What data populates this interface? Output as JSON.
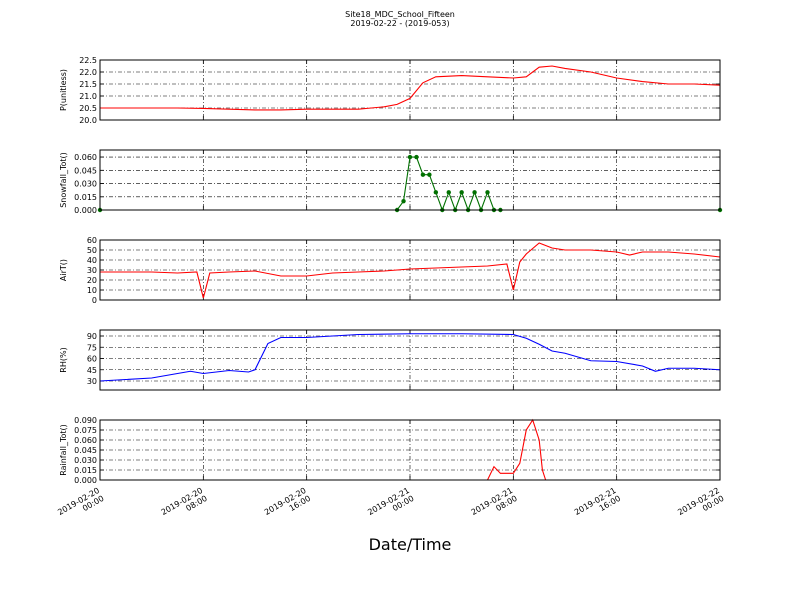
{
  "figure": {
    "title": "Site18_MDC_School_Fifteen",
    "subtitle": "2019-02-22 - (2019-053)",
    "xlabel": "Date/Time"
  },
  "chart_data": [
    {
      "type": "line",
      "ylabel": "P(unitless)",
      "grid": true,
      "xlim": [
        "2019-02-20 00:00",
        "2019-02-22 00:00"
      ],
      "xticks": [
        "2019-02-20 00:00",
        "2019-02-20 08:00",
        "2019-02-20 16:00",
        "2019-02-21 00:00",
        "2019-02-21 08:00",
        "2019-02-21 16:00",
        "2019-02-22 00:00"
      ],
      "ylim": [
        20,
        22.5
      ],
      "yticks": [
        {
          "value": 20,
          "label": "20.0"
        },
        {
          "value": 20.5,
          "label": "20.5"
        },
        {
          "value": 21,
          "label": "21.0"
        },
        {
          "value": 21.5,
          "label": "21.5"
        },
        {
          "value": 22,
          "label": "22.0"
        },
        {
          "value": 22.5,
          "label": "22.5"
        }
      ],
      "x": [
        "2019-02-20 00:00",
        "2019-02-20 02:00",
        "2019-02-20 04:00",
        "2019-02-20 06:00",
        "2019-02-20 08:00",
        "2019-02-20 10:00",
        "2019-02-20 12:00",
        "2019-02-20 14:00",
        "2019-02-20 16:00",
        "2019-02-20 18:00",
        "2019-02-20 20:00",
        "2019-02-20 21:00",
        "2019-02-20 22:00",
        "2019-02-20 23:00",
        "2019-02-21 00:00",
        "2019-02-21 01:00",
        "2019-02-21 02:00",
        "2019-02-21 04:00",
        "2019-02-21 06:00",
        "2019-02-21 08:00",
        "2019-02-21 09:00",
        "2019-02-21 10:00",
        "2019-02-21 11:00",
        "2019-02-21 12:00",
        "2019-02-21 14:00",
        "2019-02-21 16:00",
        "2019-02-21 18:00",
        "2019-02-21 20:00",
        "2019-02-21 22:00",
        "2019-02-22 00:00"
      ],
      "series": [
        {
          "color": "#ff0000",
          "values": [
            20.5,
            20.5,
            20.5,
            20.5,
            20.48,
            20.45,
            20.42,
            20.42,
            20.45,
            20.45,
            20.45,
            20.5,
            20.55,
            20.65,
            20.9,
            21.55,
            21.8,
            21.85,
            21.8,
            21.75,
            21.8,
            22.2,
            22.25,
            22.15,
            22.0,
            21.75,
            21.6,
            21.5,
            21.5,
            21.45
          ]
        }
      ]
    },
    {
      "type": "line",
      "ylabel": "Snowfall_Tot()",
      "grid": true,
      "xlim": [
        "2019-02-20 00:00",
        "2019-02-22 00:00"
      ],
      "xticks": [
        "2019-02-20 00:00",
        "2019-02-20 08:00",
        "2019-02-20 16:00",
        "2019-02-21 00:00",
        "2019-02-21 08:00",
        "2019-02-21 16:00",
        "2019-02-22 00:00"
      ],
      "ylim": [
        0,
        0.068
      ],
      "yticks": [
        {
          "value": 0,
          "label": "0.000"
        },
        {
          "value": 0.015,
          "label": "0.015"
        },
        {
          "value": 0.03,
          "label": "0.030"
        },
        {
          "value": 0.045,
          "label": "0.045"
        },
        {
          "value": 0.06,
          "label": "0.060"
        }
      ],
      "x": [
        "2019-02-20 00:00",
        "2019-02-20 23:00",
        "2019-02-20 23:30",
        "2019-02-21 00:00",
        "2019-02-21 00:30",
        "2019-02-21 01:00",
        "2019-02-21 01:30",
        "2019-02-21 02:00",
        "2019-02-21 02:30",
        "2019-02-21 03:00",
        "2019-02-21 03:30",
        "2019-02-21 04:00",
        "2019-02-21 04:30",
        "2019-02-21 05:00",
        "2019-02-21 05:30",
        "2019-02-21 06:00",
        "2019-02-21 06:30",
        "2019-02-21 07:00",
        "2019-02-22 00:00"
      ],
      "series": [
        {
          "color": "#007000",
          "marker": true,
          "values": [
            0,
            0,
            0.01,
            0.06,
            0.06,
            0.04,
            0.04,
            0.02,
            0,
            0.02,
            0,
            0.02,
            0,
            0.02,
            0,
            0.02,
            0,
            0,
            0
          ]
        }
      ]
    },
    {
      "type": "line",
      "ylabel": "AirT()",
      "grid": true,
      "xlim": [
        "2019-02-20 00:00",
        "2019-02-22 00:00"
      ],
      "xticks": [
        "2019-02-20 00:00",
        "2019-02-20 08:00",
        "2019-02-20 16:00",
        "2019-02-21 00:00",
        "2019-02-21 08:00",
        "2019-02-21 16:00",
        "2019-02-22 00:00"
      ],
      "ylim": [
        0,
        60
      ],
      "yticks": [
        0,
        10,
        20,
        30,
        40,
        50,
        60
      ],
      "x": [
        "2019-02-20 00:00",
        "2019-02-20 02:00",
        "2019-02-20 04:00",
        "2019-02-20 06:00",
        "2019-02-20 07:30",
        "2019-02-20 08:00",
        "2019-02-20 08:30",
        "2019-02-20 10:00",
        "2019-02-20 12:00",
        "2019-02-20 14:00",
        "2019-02-20 16:00",
        "2019-02-20 18:00",
        "2019-02-20 20:00",
        "2019-02-20 22:00",
        "2019-02-21 00:00",
        "2019-02-21 02:00",
        "2019-02-21 04:00",
        "2019-02-21 06:00",
        "2019-02-21 07:30",
        "2019-02-21 08:00",
        "2019-02-21 08:30",
        "2019-02-21 09:00",
        "2019-02-21 10:00",
        "2019-02-21 11:00",
        "2019-02-21 12:00",
        "2019-02-21 14:00",
        "2019-02-21 16:00",
        "2019-02-21 17:00",
        "2019-02-21 18:00",
        "2019-02-21 20:00",
        "2019-02-21 22:00",
        "2019-02-22 00:00"
      ],
      "series": [
        {
          "color": "#ff0000",
          "values": [
            28,
            28,
            28,
            27,
            28,
            2,
            27,
            28,
            29,
            24,
            24,
            27,
            28,
            29,
            31,
            32,
            33,
            34,
            36,
            10,
            38,
            46,
            57,
            52,
            50,
            50,
            48,
            45,
            48,
            48,
            46,
            43
          ]
        }
      ]
    },
    {
      "type": "line",
      "ylabel": "RH(%)",
      "grid": true,
      "xlim": [
        "2019-02-20 00:00",
        "2019-02-22 00:00"
      ],
      "xticks": [
        "2019-02-20 00:00",
        "2019-02-20 08:00",
        "2019-02-20 16:00",
        "2019-02-21 00:00",
        "2019-02-21 08:00",
        "2019-02-21 16:00",
        "2019-02-22 00:00"
      ],
      "ylim": [
        18,
        98
      ],
      "yticks": [
        30,
        45,
        60,
        75,
        90
      ],
      "x": [
        "2019-02-20 00:00",
        "2019-02-20 02:00",
        "2019-02-20 04:00",
        "2019-02-20 06:00",
        "2019-02-20 07:00",
        "2019-02-20 08:00",
        "2019-02-20 10:00",
        "2019-02-20 11:30",
        "2019-02-20 12:00",
        "2019-02-20 13:00",
        "2019-02-20 14:00",
        "2019-02-20 16:00",
        "2019-02-20 18:00",
        "2019-02-20 20:00",
        "2019-02-21 00:00",
        "2019-02-21 04:00",
        "2019-02-21 08:00",
        "2019-02-21 09:00",
        "2019-02-21 10:00",
        "2019-02-21 11:00",
        "2019-02-21 12:00",
        "2019-02-21 14:00",
        "2019-02-21 16:00",
        "2019-02-21 18:00",
        "2019-02-21 19:00",
        "2019-02-21 20:00",
        "2019-02-21 22:00",
        "2019-02-22 00:00"
      ],
      "series": [
        {
          "color": "#0000ff",
          "values": [
            30,
            32,
            34,
            40,
            43,
            40,
            44,
            42,
            45,
            80,
            88,
            88,
            90,
            92,
            93,
            93,
            92,
            87,
            79,
            70,
            67,
            57,
            56,
            50,
            43,
            47,
            47,
            45
          ]
        }
      ]
    },
    {
      "type": "line",
      "ylabel": "Rainfall_Tot()",
      "grid": true,
      "xlim": [
        "2019-02-20 00:00",
        "2019-02-22 00:00"
      ],
      "xticks": [
        "2019-02-20 00:00",
        "2019-02-20 08:00",
        "2019-02-20 16:00",
        "2019-02-21 00:00",
        "2019-02-21 08:00",
        "2019-02-21 16:00",
        "2019-02-22 00:00"
      ],
      "ylim": [
        0,
        0.09
      ],
      "yticks": [
        {
          "value": 0,
          "label": "0.000"
        },
        {
          "value": 0.015,
          "label": "0.015"
        },
        {
          "value": 0.03,
          "label": "0.030"
        },
        {
          "value": 0.045,
          "label": "0.045"
        },
        {
          "value": 0.06,
          "label": "0.060"
        },
        {
          "value": 0.075,
          "label": "0.075"
        },
        {
          "value": 0.09,
          "label": "0.090"
        }
      ],
      "x": [
        "2019-02-20 00:00",
        "2019-02-21 06:00",
        "2019-02-21 06:30",
        "2019-02-21 07:00",
        "2019-02-21 08:00",
        "2019-02-21 08:30",
        "2019-02-21 09:00",
        "2019-02-21 09:30",
        "2019-02-21 10:00",
        "2019-02-21 10:15",
        "2019-02-21 10:30",
        "2019-02-22 00:00"
      ],
      "series": [
        {
          "color": "#ff0000",
          "values": [
            0,
            0,
            0.02,
            0.01,
            0.01,
            0.025,
            0.075,
            0.09,
            0.06,
            0.015,
            0,
            0
          ]
        }
      ]
    }
  ]
}
